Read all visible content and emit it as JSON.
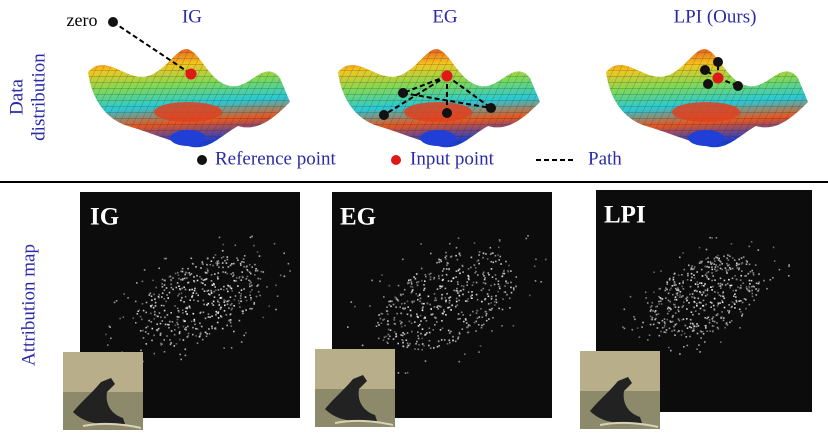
{
  "top": {
    "row_label_lines": [
      "Data",
      "distribution"
    ],
    "panels": [
      {
        "title": "IG",
        "zero_label": "zero"
      },
      {
        "title": "EG"
      },
      {
        "title": "LPI (Ours)"
      }
    ],
    "legend": [
      {
        "label": "Reference point"
      },
      {
        "label": "Input point"
      },
      {
        "label": "Path"
      }
    ]
  },
  "bottom": {
    "row_label": "Attribution map",
    "panels": [
      {
        "label": "IG"
      },
      {
        "label": "EG"
      },
      {
        "label": "LPI"
      }
    ]
  }
}
